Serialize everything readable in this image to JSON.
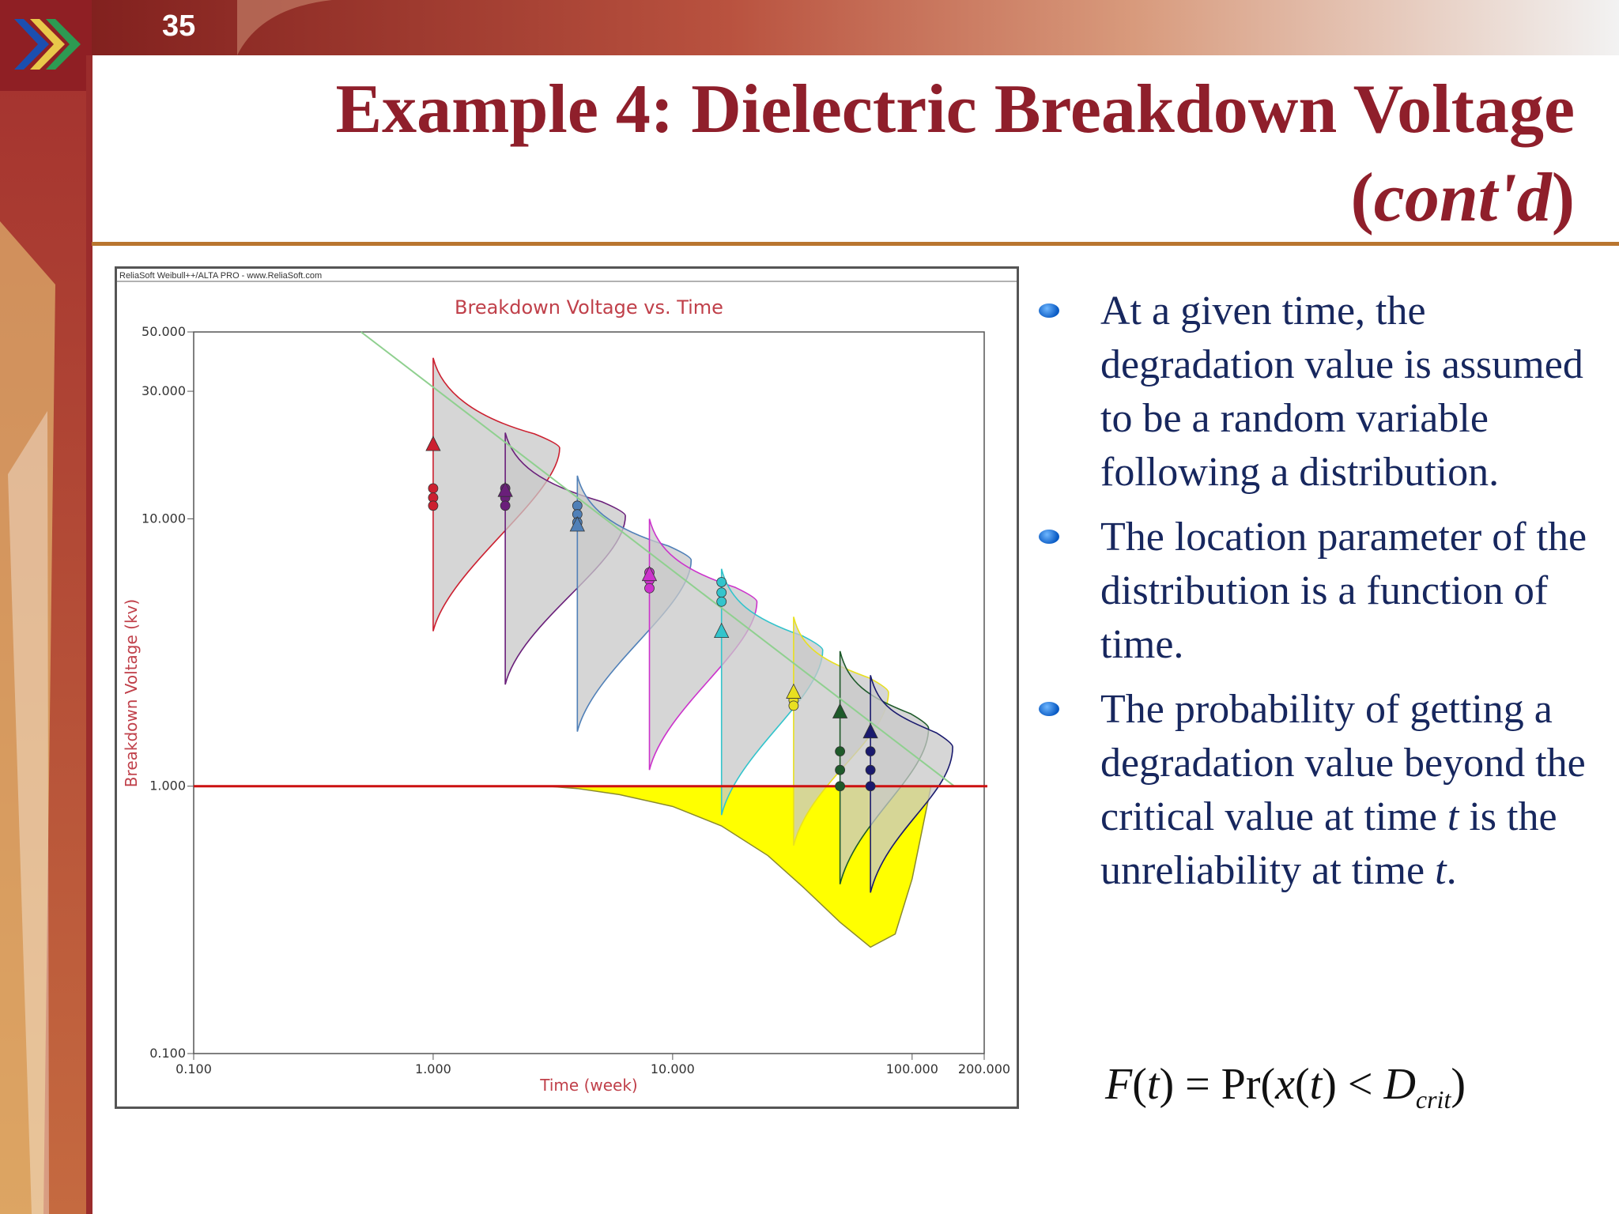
{
  "slide": {
    "number": "35",
    "title_line1": "Example 4: Dielectric Breakdown Voltage",
    "title_line2_open": "(",
    "title_line2_italic": "cont'd",
    "title_line2_close": ")",
    "colors": {
      "title": "#8f1f2b",
      "accent": "#a93a3a",
      "text": "#17275e"
    }
  },
  "bullets": [
    {
      "parts": [
        "At a given time, the degradation value is assumed to be a random variable following a distribution."
      ]
    },
    {
      "parts": [
        "The location parameter of the distribution is a function of time."
      ]
    },
    {
      "parts": [
        "The probability of getting a degradation value beyond the critical value at time ",
        "t",
        " is the unreliability at time ",
        "t",
        "."
      ]
    }
  ],
  "formula": {
    "lhs_f": "F",
    "lhs_t": "t",
    "eq": " = Pr(",
    "x": "x",
    "t2": "t",
    "lt": ") < ",
    "d": "D",
    "sub": "crit",
    "close": ")"
  },
  "chart_data": {
    "type": "scatter",
    "software_label": "ReliaSoft Weibull++/ALTA PRO - www.ReliaSoft.com",
    "title": "Breakdown Voltage vs. Time",
    "xlabel": "Time (week)",
    "ylabel": "Breakdown Voltage (kv)",
    "x_scale": "log",
    "y_scale": "log",
    "xlim": [
      0.1,
      200
    ],
    "ylim": [
      0.1,
      50
    ],
    "x_ticks": [
      {
        "value": 0.1,
        "label": "0.100"
      },
      {
        "value": 1,
        "label": "1.000"
      },
      {
        "value": 10,
        "label": "10.000"
      },
      {
        "value": 100,
        "label": "100.000"
      },
      {
        "value": 200,
        "label": "200.000"
      }
    ],
    "y_ticks": [
      {
        "value": 0.1,
        "label": "0.100"
      },
      {
        "value": 1,
        "label": "1.000"
      },
      {
        "value": 10,
        "label": "10.000"
      },
      {
        "value": 30,
        "label": "30.000"
      },
      {
        "value": 50,
        "label": "50.000"
      }
    ],
    "critical_value": 1.0,
    "critical_color": "#cc1111",
    "fit_line": {
      "x": [
        0.5,
        150
      ],
      "y": [
        50,
        1
      ],
      "color": "#8fd08f"
    },
    "groups": [
      {
        "time": 1,
        "color": "#cc2030",
        "fill": "#e2a4aa",
        "observations": [
          13,
          12,
          11.2
        ],
        "mean_marker": 19,
        "pdf_top": 40,
        "pdf_bottom": 3.8
      },
      {
        "time": 2,
        "color": "#6a1f7a",
        "fill": "#c9a8cf",
        "observations": [
          13,
          12,
          11.2
        ],
        "mean_marker": 12.8,
        "pdf_top": 21,
        "pdf_bottom": 2.4
      },
      {
        "time": 4,
        "color": "#5080b8",
        "fill": "#aec4de",
        "observations": [
          11.2,
          10.4,
          9.7
        ],
        "mean_marker": 9.5,
        "pdf_top": 14.5,
        "pdf_bottom": 1.6
      },
      {
        "time": 8,
        "color": "#cc33cc",
        "fill": "#e6b0e6",
        "observations": [
          6.3,
          5.9,
          5.5
        ],
        "mean_marker": 6.2,
        "pdf_top": 10,
        "pdf_bottom": 1.15
      },
      {
        "time": 16,
        "color": "#33c4cc",
        "fill": "#b0e8ec",
        "observations": [
          5.8,
          5.3,
          4.9
        ],
        "mean_marker": 3.8,
        "pdf_top": 6.5,
        "pdf_bottom": 0.78
      },
      {
        "time": 32,
        "color": "#e8e020",
        "fill": "#f4f0a0",
        "observations": [
          2.2,
          2.1,
          2.0
        ],
        "mean_marker": 2.25,
        "pdf_top": 4.3,
        "pdf_bottom": 0.6
      },
      {
        "time": 50,
        "color": "#1e5a2a",
        "fill": "#a9c5ad",
        "observations": [
          1.35,
          1.15,
          1.0
        ],
        "mean_marker": 1.9,
        "pdf_top": 3.2,
        "pdf_bottom": 0.43
      },
      {
        "time": 67,
        "color": "#1a1a6e",
        "fill": "#a8a8c8",
        "observations": [
          1.35,
          1.15,
          1.0
        ],
        "mean_marker": 1.6,
        "pdf_top": 2.6,
        "pdf_bottom": 0.4
      }
    ],
    "unreliability_region": {
      "color": "#ffff00",
      "x": [
        3,
        4,
        6,
        10,
        16,
        25,
        35,
        50,
        67,
        85,
        100,
        120
      ],
      "y_lower": [
        1.0,
        0.98,
        0.93,
        0.84,
        0.71,
        0.55,
        0.42,
        0.31,
        0.25,
        0.28,
        0.45,
        1.0
      ]
    }
  }
}
